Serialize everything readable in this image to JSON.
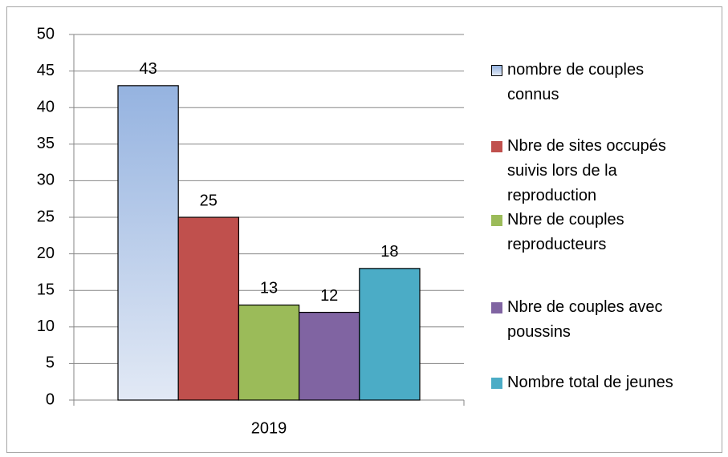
{
  "chart_data": {
    "type": "bar",
    "categories": [
      "2019"
    ],
    "series": [
      {
        "name": "nombre de couples connus",
        "color": "#a3bbe4",
        "values": [
          43
        ]
      },
      {
        "name": "Nbre de sites occupés suivis lors de la reproduction",
        "color": "#c0504d",
        "values": [
          25
        ]
      },
      {
        "name": "Nbre de couples reproducteurs",
        "color": "#9bbb59",
        "values": [
          13
        ]
      },
      {
        "name": "Nbre de couples avec poussins",
        "color": "#8064a2",
        "values": [
          12
        ]
      },
      {
        "name": "Nombre total de jeunes",
        "color": "#4bacc6",
        "values": [
          18
        ]
      }
    ],
    "ylim": [
      0,
      50
    ],
    "yticks": [
      0,
      5,
      10,
      15,
      20,
      25,
      30,
      35,
      40,
      45,
      50
    ],
    "grid": true,
    "legend": "right"
  }
}
